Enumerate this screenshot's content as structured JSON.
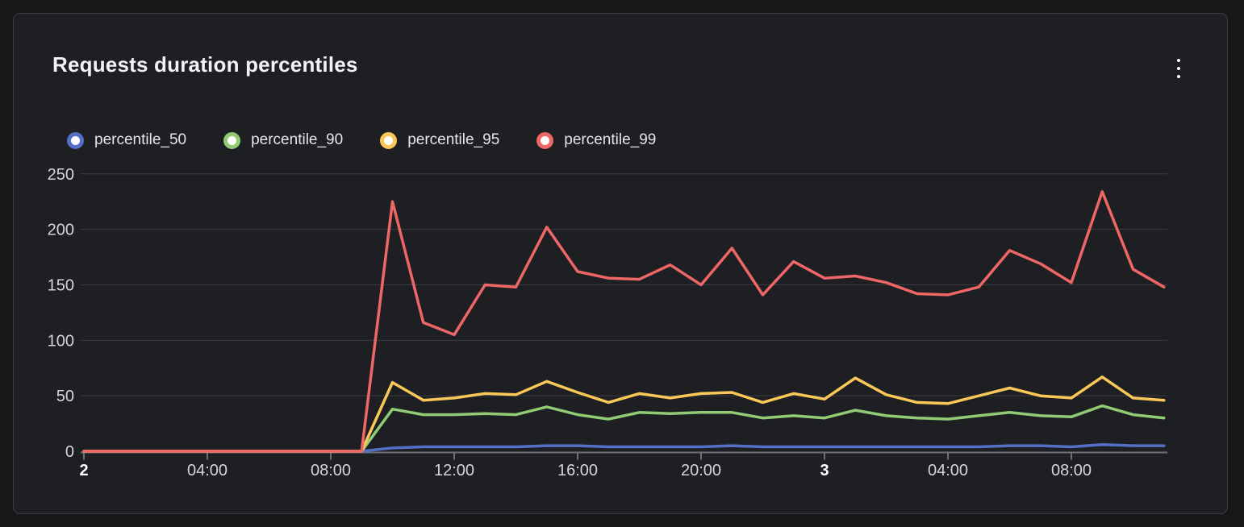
{
  "panel": {
    "title": "Requests duration percentiles",
    "menu_icon": "kebab-vertical"
  },
  "legend": {
    "items": [
      {
        "label": "percentile_50",
        "color": "#5470C6"
      },
      {
        "label": "percentile_90",
        "color": "#91CC75"
      },
      {
        "label": "percentile_95",
        "color": "#FAC858"
      },
      {
        "label": "percentile_99",
        "color": "#EE6666"
      }
    ]
  },
  "chart_data": {
    "type": "line",
    "title": "Requests duration percentiles",
    "xlabel": "",
    "ylabel": "",
    "x_unit": "hours since day 2 00:00",
    "x": [
      0,
      1,
      2,
      3,
      4,
      5,
      6,
      7,
      8,
      9,
      10,
      11,
      12,
      13,
      14,
      15,
      16,
      17,
      18,
      19,
      20,
      21,
      22,
      23,
      24,
      25,
      26,
      27,
      28,
      29,
      30,
      31,
      32,
      33,
      34,
      35
    ],
    "x_tick_hours": [
      0,
      4,
      8,
      12,
      16,
      20,
      24,
      28,
      32
    ],
    "x_tick_labels": [
      "2",
      "04:00",
      "08:00",
      "12:00",
      "16:00",
      "20:00",
      "3",
      "04:00",
      "08:00"
    ],
    "x_tick_bold": [
      true,
      false,
      false,
      false,
      false,
      false,
      true,
      false,
      false
    ],
    "y_ticks": [
      0,
      50,
      100,
      150,
      200,
      250
    ],
    "ylim": [
      0,
      250
    ],
    "grid": true,
    "legend_position": "top-left",
    "series": [
      {
        "name": "percentile_50",
        "color": "#5470C6",
        "values": [
          0,
          0,
          0,
          0,
          0,
          0,
          0,
          0,
          0,
          0,
          3,
          4,
          4,
          4,
          4,
          5,
          5,
          4,
          4,
          4,
          4,
          5,
          4,
          4,
          4,
          4,
          4,
          4,
          4,
          4,
          5,
          5,
          4,
          6,
          5,
          5
        ]
      },
      {
        "name": "percentile_90",
        "color": "#91CC75",
        "values": [
          0,
          0,
          0,
          0,
          0,
          0,
          0,
          0,
          0,
          0,
          38,
          33,
          33,
          34,
          33,
          40,
          33,
          29,
          35,
          34,
          35,
          35,
          30,
          32,
          30,
          37,
          32,
          30,
          29,
          32,
          35,
          32,
          31,
          41,
          33,
          30
        ]
      },
      {
        "name": "percentile_95",
        "color": "#FAC858",
        "values": [
          0,
          0,
          0,
          0,
          0,
          0,
          0,
          0,
          0,
          0,
          62,
          46,
          48,
          52,
          51,
          63,
          53,
          44,
          52,
          48,
          52,
          53,
          44,
          52,
          47,
          66,
          51,
          44,
          43,
          50,
          57,
          50,
          48,
          67,
          48,
          46
        ]
      },
      {
        "name": "percentile_99",
        "color": "#EE6666",
        "values": [
          0,
          0,
          0,
          0,
          0,
          0,
          0,
          0,
          0,
          0,
          225,
          116,
          105,
          150,
          148,
          202,
          162,
          156,
          155,
          168,
          150,
          183,
          141,
          171,
          156,
          158,
          152,
          142,
          141,
          148,
          181,
          169,
          152,
          234,
          164,
          148
        ]
      }
    ]
  },
  "axis_style": {
    "label_color": "#d5d6d8",
    "bold_label_color": "#ffffff",
    "axis_line_color": "#6e7079",
    "grid_color": "#3a3c41"
  }
}
